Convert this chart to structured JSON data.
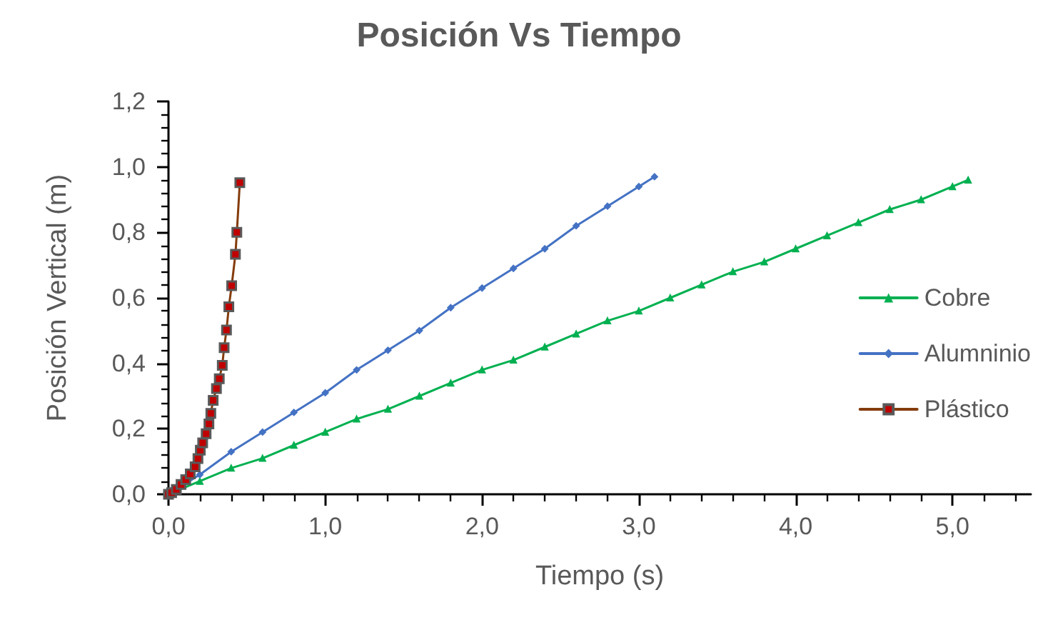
{
  "chart_data": {
    "type": "line",
    "title": "Posición Vs Tiempo",
    "xlabel": "Tiempo (s)",
    "ylabel": "Posición Vertical (m)",
    "xlim": [
      0,
      5.5
    ],
    "xticks": [
      {
        "value": 0,
        "label": "0,0"
      },
      {
        "value": 1,
        "label": "1,0"
      },
      {
        "value": 2,
        "label": "2,0"
      },
      {
        "value": 3,
        "label": "3,0"
      },
      {
        "value": 4,
        "label": "4,0"
      },
      {
        "value": 5,
        "label": "5,0"
      }
    ],
    "ylim": [
      0,
      1.2
    ],
    "yticks": [
      {
        "value": 0,
        "label": "0,0"
      },
      {
        "value": 0.2,
        "label": "0,2"
      },
      {
        "value": 0.4,
        "label": "0,4"
      },
      {
        "value": 0.6,
        "label": "0,6"
      },
      {
        "value": 0.8,
        "label": "0,8"
      },
      {
        "value": 1.0,
        "label": "1,0"
      },
      {
        "value": 1.2,
        "label": "1,2"
      }
    ],
    "grid": false,
    "legend": "right",
    "line_style": "solid",
    "series": [
      {
        "name": "Cobre",
        "color": "#00b050",
        "marker": "triangle",
        "x": [
          0,
          0.2,
          0.4,
          0.6,
          0.8,
          1.0,
          1.2,
          1.4,
          1.6,
          1.8,
          2.0,
          2.2,
          2.4,
          2.6,
          2.8,
          3.0,
          3.2,
          3.4,
          3.6,
          3.8,
          4.0,
          4.2,
          4.4,
          4.6,
          4.8,
          5.0,
          5.1
        ],
        "values": [
          0,
          0.04,
          0.08,
          0.11,
          0.15,
          0.19,
          0.23,
          0.26,
          0.3,
          0.34,
          0.38,
          0.41,
          0.45,
          0.49,
          0.53,
          0.56,
          0.6,
          0.64,
          0.68,
          0.71,
          0.75,
          0.79,
          0.83,
          0.87,
          0.9,
          0.94,
          0.96
        ]
      },
      {
        "name": "Alumninio",
        "color": "#4472c4",
        "marker": "diamond",
        "x": [
          0,
          0.2,
          0.4,
          0.6,
          0.8,
          1.0,
          1.2,
          1.4,
          1.6,
          1.8,
          2.0,
          2.2,
          2.4,
          2.6,
          2.8,
          3.0,
          3.1
        ],
        "values": [
          0,
          0.06,
          0.13,
          0.19,
          0.25,
          0.31,
          0.38,
          0.44,
          0.5,
          0.57,
          0.63,
          0.69,
          0.75,
          0.82,
          0.88,
          0.94,
          0.97
        ]
      },
      {
        "name": "Plástico",
        "color": "#843c0c",
        "marker": "square",
        "x": [
          0,
          0.02,
          0.05,
          0.08,
          0.11,
          0.139,
          0.17,
          0.188,
          0.203,
          0.218,
          0.24,
          0.258,
          0.27,
          0.285,
          0.306,
          0.324,
          0.343,
          0.355,
          0.37,
          0.385,
          0.403,
          0.427,
          0.436,
          0.455
        ],
        "values": [
          0,
          0.005,
          0.015,
          0.03,
          0.045,
          0.062,
          0.084,
          0.109,
          0.135,
          0.157,
          0.185,
          0.215,
          0.247,
          0.287,
          0.323,
          0.353,
          0.394,
          0.448,
          0.502,
          0.573,
          0.637,
          0.733,
          0.8,
          0.952
        ]
      }
    ]
  }
}
